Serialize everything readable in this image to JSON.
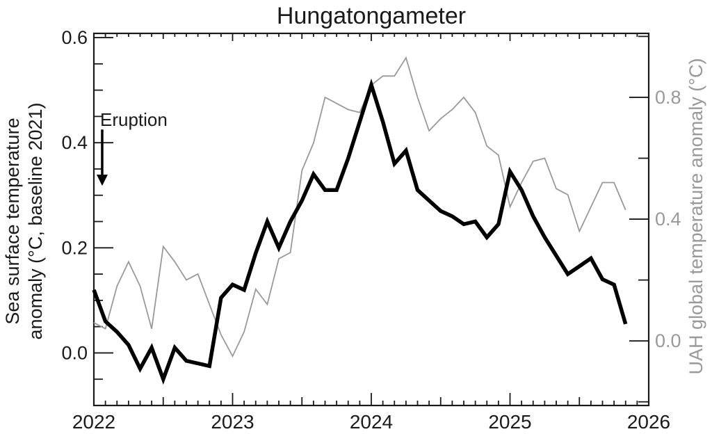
{
  "chart_data": {
    "type": "line",
    "title": "Hungatongameter",
    "x_axis": {
      "range": [
        2022,
        2026
      ],
      "tick_values": [
        2022,
        2023,
        2024,
        2025,
        2026
      ],
      "tick_labels": [
        "2022",
        "2023",
        "2024",
        "2025",
        "2026"
      ],
      "minor_ticks": "monthly",
      "mid_year_ticks": "july-medium-length"
    },
    "left_axis": {
      "title_line1": "Sea surface temperature",
      "title_line2": "anomaly (°C, baseline 2021)",
      "tick_values": [
        0.0,
        0.2,
        0.4,
        0.6
      ],
      "tick_labels": [
        "0.0",
        "0.2",
        "0.4",
        "0.6"
      ],
      "minor_tick_step": 0.05,
      "range": [
        -0.1,
        0.608
      ],
      "color": "#1a1a1a"
    },
    "right_axis": {
      "title": "UAH global temperature anomaly (°C)",
      "tick_values": [
        0.0,
        0.4,
        0.8
      ],
      "tick_labels": [
        "0.0",
        "0.4",
        "0.8"
      ],
      "minor_tick_values": [
        -0.2,
        0.2,
        0.6,
        1.0
      ],
      "range": [
        -0.212,
        1.01
      ],
      "color": "#999999"
    },
    "annotation": {
      "label": "Eruption",
      "x": 2022.06,
      "y_start": 0.425,
      "y_tip": 0.318,
      "axis": "left"
    },
    "legend": "none",
    "grid": false,
    "series": [
      {
        "name": "Sea surface temperature anomaly (°C, baseline 2021)",
        "axis": "left",
        "color": "#000000",
        "stroke_width": 5.5,
        "start_year": 2022,
        "start_month": 1,
        "monthly_values": [
          0.12,
          0.06,
          0.04,
          0.015,
          -0.03,
          0.01,
          -0.05,
          0.01,
          -0.015,
          -0.02,
          -0.025,
          0.105,
          0.13,
          0.12,
          0.19,
          0.25,
          0.2,
          0.25,
          0.29,
          0.34,
          0.31,
          0.31,
          0.37,
          0.44,
          0.51,
          0.44,
          0.36,
          0.385,
          0.31,
          0.29,
          0.27,
          0.26,
          0.245,
          0.25,
          0.22,
          0.245,
          0.345,
          0.31,
          0.26,
          0.22,
          0.185,
          0.15,
          0.165,
          0.18,
          0.14,
          0.13,
          0.055
        ]
      },
      {
        "name": "UAH global temperature anomaly (°C)",
        "axis": "right",
        "color": "#999999",
        "stroke_width": 1.8,
        "start_year": 2022,
        "start_month": 1,
        "monthly_values": [
          0.06,
          0.04,
          0.18,
          0.26,
          0.18,
          0.04,
          0.31,
          0.26,
          0.2,
          0.22,
          0.12,
          0.02,
          -0.05,
          0.03,
          0.17,
          0.12,
          0.27,
          0.29,
          0.56,
          0.65,
          0.8,
          0.78,
          0.76,
          0.75,
          0.84,
          0.87,
          0.87,
          0.93,
          0.8,
          0.69,
          0.73,
          0.76,
          0.8,
          0.75,
          0.64,
          0.61,
          0.44,
          0.52,
          0.59,
          0.6,
          0.5,
          0.48,
          0.36,
          0.44,
          0.52,
          0.52,
          0.43
        ]
      }
    ]
  }
}
